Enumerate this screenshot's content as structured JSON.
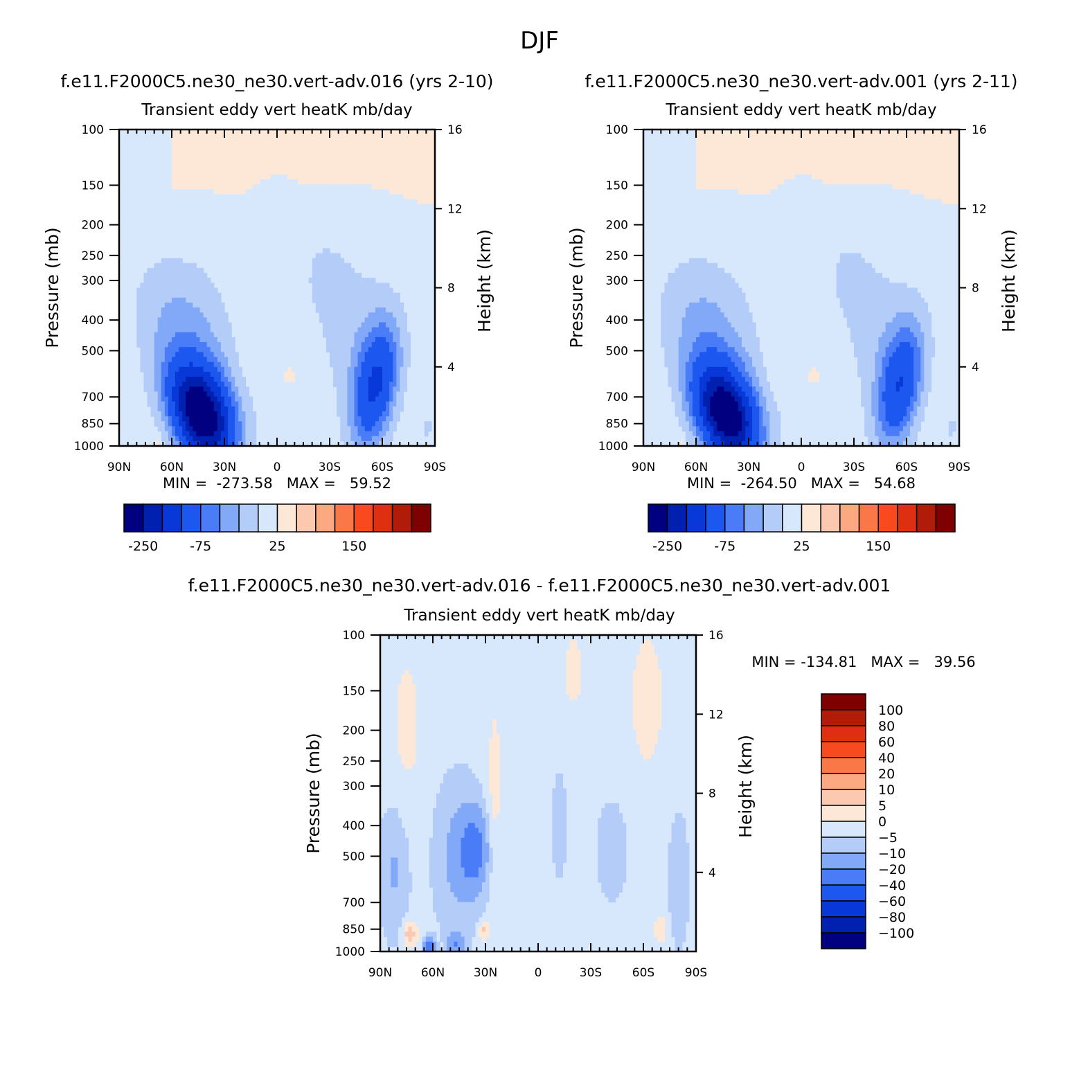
{
  "figure": {
    "title": "DJF"
  },
  "common": {
    "subtitle": "Transient eddy vert heatK mb/day",
    "ylabel_left": "Pressure (mb)",
    "ylabel_right": "Height (km)",
    "pressure_ticks": [
      {
        "p": 100,
        "label": "100"
      },
      {
        "p": 150,
        "label": "150"
      },
      {
        "p": 200,
        "label": "200"
      },
      {
        "p": 250,
        "label": "250"
      },
      {
        "p": 300,
        "label": "300"
      },
      {
        "p": 400,
        "label": "400"
      },
      {
        "p": 500,
        "label": "500"
      },
      {
        "p": 700,
        "label": "700"
      },
      {
        "p": 850,
        "label": "850"
      },
      {
        "p": 1000,
        "label": "1000"
      }
    ],
    "lat_ticks": [
      {
        "lat": 90,
        "label": "90N"
      },
      {
        "lat": 60,
        "label": "60N"
      },
      {
        "lat": 30,
        "label": "30N"
      },
      {
        "lat": 0,
        "label": "0"
      },
      {
        "lat": -30,
        "label": "30S"
      },
      {
        "lat": -60,
        "label": "60S"
      },
      {
        "lat": -90,
        "label": "90S"
      }
    ],
    "height_ticks": [
      {
        "km": 4,
        "label": "4"
      },
      {
        "km": 8,
        "label": "8"
      },
      {
        "km": 12,
        "label": "12"
      },
      {
        "km": 16,
        "label": "16"
      }
    ],
    "scale_height_km": 6.95
  },
  "colors": {
    "main": [
      "#000080",
      "#0020b0",
      "#0838d8",
      "#1c58f0",
      "#4a7cf8",
      "#82a8f8",
      "#b4ccf8",
      "#d8e8fc",
      "#fde8d8",
      "#fcc8b0",
      "#fca880",
      "#fa7848",
      "#f84a1e",
      "#de3010",
      "#b01c08",
      "#7e0000"
    ],
    "diff": [
      "#000080",
      "#0020b0",
      "#0838d8",
      "#1c58f0",
      "#4a7cf8",
      "#82a8f8",
      "#b4ccf8",
      "#d8e8fc",
      "#fde8d8",
      "#fcc8b0",
      "#fca880",
      "#fa7848",
      "#f84a1e",
      "#de3010",
      "#b01c08",
      "#7e0000"
    ]
  },
  "panels": {
    "a": {
      "title": "f.e11.F2000C5.ne30_ne30.vert-adv.016 (yrs 2-10)",
      "stats": "MIN =  -273.58   MAX =   59.52"
    },
    "b": {
      "title": "f.e11.F2000C5.ne30_ne30.vert-adv.001 (yrs 2-11)",
      "stats": "MIN =  -264.50   MAX =   54.68"
    },
    "c": {
      "title": "f.e11.F2000C5.ne30_ne30.vert-adv.016 - f.e11.F2000C5.ne30_ne30.vert-adv.001",
      "stats": "MIN = -134.81   MAX =   39.56"
    }
  },
  "colorbar_main": {
    "labels": [
      "-250",
      "-75",
      "25",
      "150"
    ],
    "label_slots": [
      1,
      4,
      8,
      12
    ]
  },
  "colorbar_diff": {
    "labels": [
      "100",
      "80",
      "60",
      "40",
      "20",
      "10",
      "5",
      "0",
      "-5",
      "-10",
      "-20",
      "-40",
      "-60",
      "-80",
      "-100"
    ]
  },
  "chart_data": [
    {
      "type": "heatmap",
      "title": "f.e11.F2000C5.ne30_ne30.vert-adv.016 (yrs 2-10)",
      "subtitle": "Transient eddy vert heatK mb/day",
      "xlabel": "",
      "ylabel": "Pressure (mb)",
      "ylabel_right": "Height (km)",
      "xlim": [
        "90N",
        "90S"
      ],
      "ylim": [
        1000,
        100
      ],
      "y_scale": "log",
      "min": -273.58,
      "max": 59.52,
      "levels": [
        -250,
        -75,
        25,
        150
      ],
      "features": [
        {
          "name": "NH midlatitude minimum",
          "lat": 40,
          "p": 850,
          "value": -273.58
        },
        {
          "name": "SH midlatitude minimum",
          "lat": -50,
          "p": 800,
          "value": -150
        },
        {
          "name": "tropical positive",
          "lat": 15,
          "p": 550,
          "value": 10
        },
        {
          "name": "stratospheric positive",
          "lat": 0,
          "p": 150,
          "value": 5
        }
      ]
    },
    {
      "type": "heatmap",
      "title": "f.e11.F2000C5.ne30_ne30.vert-adv.001 (yrs 2-11)",
      "subtitle": "Transient eddy vert heatK mb/day",
      "xlabel": "",
      "ylabel": "Pressure (mb)",
      "ylabel_right": "Height (km)",
      "xlim": [
        "90N",
        "90S"
      ],
      "ylim": [
        1000,
        100
      ],
      "y_scale": "log",
      "min": -264.5,
      "max": 54.68,
      "levels": [
        -250,
        -75,
        25,
        150
      ],
      "features": [
        {
          "name": "NH midlatitude minimum",
          "lat": 40,
          "p": 850,
          "value": -264.5
        },
        {
          "name": "SH midlatitude minimum",
          "lat": -50,
          "p": 800,
          "value": -140
        },
        {
          "name": "tropical positive",
          "lat": 15,
          "p": 550,
          "value": 10
        },
        {
          "name": "stratospheric positive",
          "lat": 0,
          "p": 150,
          "value": 5
        }
      ]
    },
    {
      "type": "heatmap",
      "title": "f.e11.F2000C5.ne30_ne30.vert-adv.016 - f.e11.F2000C5.ne30_ne30.vert-adv.001",
      "subtitle": "Transient eddy vert heatK mb/day",
      "xlabel": "",
      "ylabel": "Pressure (mb)",
      "ylabel_right": "Height (km)",
      "xlim": [
        "90N",
        "90S"
      ],
      "ylim": [
        1000,
        100
      ],
      "y_scale": "log",
      "min": -134.81,
      "max": 39.56,
      "levels": [
        -100,
        -80,
        -60,
        -40,
        -20,
        -10,
        -5,
        0,
        5,
        10,
        20,
        40,
        60,
        80,
        100
      ],
      "features": [
        {
          "name": "NH subtropical negative",
          "lat": 37,
          "p": 450,
          "value": -60
        },
        {
          "name": "NH high-latitude negative",
          "lat": 62,
          "p": 950,
          "value": -40
        },
        {
          "name": "low-level positive",
          "lat": 72,
          "p": 880,
          "value": 20
        }
      ]
    }
  ]
}
